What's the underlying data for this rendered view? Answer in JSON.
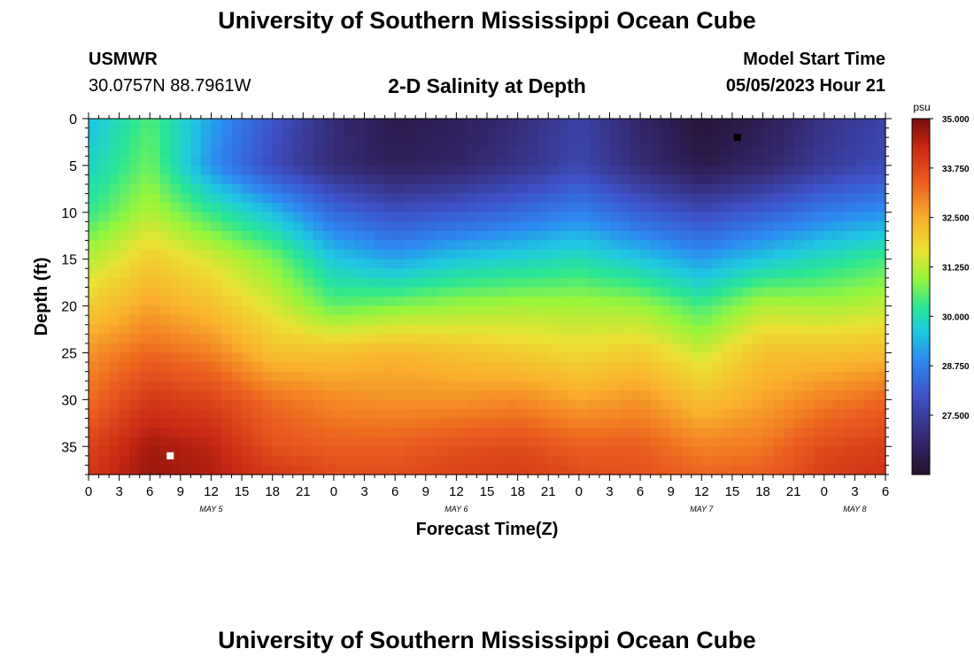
{
  "header": {
    "title": "University of Southern Mississippi Ocean Cube",
    "station": "USMWR",
    "coordinates": "30.0757N  88.7961W",
    "subtitle": "2-D Salinity at Depth",
    "start_label": "Model Start Time",
    "start_value": "05/05/2023 Hour 21"
  },
  "footer": {
    "title": "University of Southern Mississippi Ocean Cube"
  },
  "chart_data": {
    "type": "heatmap",
    "title": "2-D Salinity at Depth",
    "xlabel": "Forecast Time(Z)",
    "ylabel": "Depth (ft)",
    "x_unit": "hours from May 5 00Z",
    "x_range": [
      0,
      78
    ],
    "x_tick_values": [
      0,
      3,
      6,
      9,
      12,
      15,
      18,
      21,
      24,
      27,
      30,
      33,
      36,
      39,
      42,
      45,
      48,
      51,
      54,
      57,
      60,
      63,
      66,
      69,
      72,
      75,
      78
    ],
    "x_tick_labels": [
      "0",
      "3",
      "6",
      "9",
      "12",
      "15",
      "18",
      "21",
      "0",
      "3",
      "6",
      "9",
      "12",
      "15",
      "18",
      "21",
      "0",
      "3",
      "6",
      "9",
      "12",
      "15",
      "18",
      "21",
      "0",
      "3",
      "6"
    ],
    "date_labels": [
      {
        "text": "MAY 5",
        "x": 12
      },
      {
        "text": "MAY 6",
        "x": 36
      },
      {
        "text": "MAY 7",
        "x": 60
      },
      {
        "text": "MAY 8",
        "x": 75
      }
    ],
    "y_range": [
      0,
      38
    ],
    "y_inverted": true,
    "y_ticks": [
      0,
      5,
      10,
      15,
      20,
      25,
      30,
      35
    ],
    "colorbar": {
      "unit": "psu",
      "min": 26.0,
      "max": 35.0,
      "tick_values": [
        35.0,
        33.75,
        32.5,
        31.25,
        30.0,
        28.75,
        27.5
      ],
      "tick_labels": [
        "35.000",
        "33.750",
        "32.500",
        "31.250",
        "30.000",
        "28.750",
        "27.500"
      ]
    },
    "depth_levels": [
      0,
      5,
      10,
      15,
      20,
      25,
      30,
      35,
      38
    ],
    "time_knots": [
      0,
      6,
      12,
      18,
      24,
      30,
      36,
      42,
      48,
      54,
      60,
      66,
      72,
      78
    ],
    "salinity": [
      [
        29.5,
        30.5,
        29.2,
        28.0,
        27.0,
        26.4,
        26.6,
        27.0,
        27.6,
        26.8,
        26.1,
        26.5,
        27.2,
        27.6
      ],
      [
        29.8,
        30.7,
        29.0,
        27.8,
        27.0,
        26.6,
        26.8,
        27.2,
        27.7,
        27.0,
        26.4,
        26.8,
        27.4,
        27.8
      ],
      [
        30.3,
        31.2,
        30.3,
        29.5,
        28.4,
        27.9,
        28.1,
        28.4,
        28.8,
        28.2,
        27.8,
        28.2,
        28.7,
        29.0
      ],
      [
        31.2,
        32.0,
        31.5,
        30.8,
        29.6,
        29.2,
        29.6,
        29.8,
        30.0,
        29.6,
        29.1,
        29.6,
        30.0,
        30.4
      ],
      [
        32.0,
        32.6,
        32.2,
        31.5,
        30.6,
        30.8,
        31.0,
        31.1,
        31.1,
        31.0,
        30.4,
        31.2,
        31.1,
        31.3
      ],
      [
        32.8,
        33.3,
        33.0,
        32.2,
        32.2,
        32.4,
        32.2,
        32.0,
        31.8,
        32.0,
        31.4,
        32.2,
        32.2,
        32.3
      ],
      [
        33.2,
        34.0,
        33.8,
        33.2,
        32.9,
        32.8,
        32.8,
        32.9,
        32.6,
        32.8,
        32.2,
        32.6,
        33.0,
        33.3
      ],
      [
        33.8,
        34.6,
        34.4,
        33.6,
        33.4,
        33.4,
        33.6,
        33.7,
        33.4,
        33.4,
        33.0,
        33.1,
        33.7,
        33.9
      ],
      [
        34.0,
        34.7,
        34.5,
        34.0,
        33.7,
        33.7,
        33.8,
        33.9,
        33.7,
        33.6,
        33.3,
        33.4,
        33.9,
        34.1
      ]
    ],
    "markers": [
      {
        "name": "minimum",
        "x": 63.5,
        "y": 2,
        "color": "#000000"
      },
      {
        "name": "maximum",
        "x": 8,
        "y": 36,
        "color": "#ffffff"
      }
    ]
  }
}
